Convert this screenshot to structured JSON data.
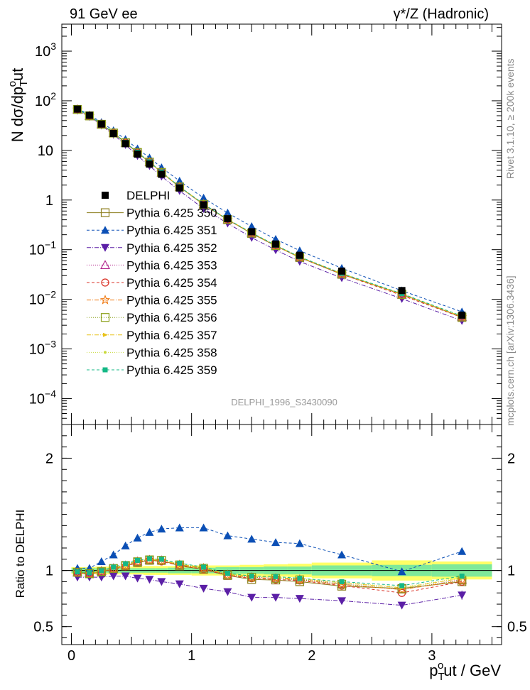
{
  "header": {
    "left": "91 GeV ee",
    "right": "γ*/Z (Hadronic)"
  },
  "side": {
    "upper": "Rivet 3.1.10, ≥ 200k events",
    "lower": "mcplots.cern.ch [arXiv:1306.3436]"
  },
  "watermark": "DELPHI_1996_S3430090",
  "colors": {
    "ref": "#000000",
    "band_inner": "#7fe99a",
    "band_outer": "#ffff66"
  },
  "chart_data": [
    {
      "type": "scatter",
      "panel": "main",
      "ylabel": "N dσ/dp",
      "ylabel_sub": "T",
      "ylabel_sup": "o",
      "ylabel_tail": "ut",
      "yscale": "log",
      "xlim": [
        -0.08,
        3.58
      ],
      "ylim": [
        3e-05,
        3500
      ],
      "yticks": [
        {
          "v": 0.0001,
          "base": "10",
          "exp": "−4"
        },
        {
          "v": 0.001,
          "base": "10",
          "exp": "−3"
        },
        {
          "v": 0.01,
          "base": "10",
          "exp": "−2"
        },
        {
          "v": 0.1,
          "base": "10",
          "exp": "−1"
        },
        {
          "v": 1,
          "base": "1",
          "exp": ""
        },
        {
          "v": 10,
          "base": "10",
          "exp": ""
        },
        {
          "v": 100,
          "base": "10",
          "exp": "2"
        },
        {
          "v": 1000,
          "base": "10",
          "exp": "3"
        }
      ],
      "x": [
        0.05,
        0.15,
        0.25,
        0.35,
        0.45,
        0.55,
        0.65,
        0.75,
        0.9,
        1.1,
        1.3,
        1.5,
        1.7,
        1.9,
        2.25,
        2.75,
        3.25
      ],
      "reference": {
        "name": "DELPHI",
        "values": [
          68,
          51,
          34,
          22,
          13.7,
          8.4,
          5.3,
          3.3,
          1.75,
          0.8,
          0.42,
          0.23,
          0.13,
          0.077,
          0.037,
          0.015,
          0.0048
        ]
      },
      "series": [
        {
          "name": "Pythia 6.425 350",
          "color": "#8c7d1c",
          "marker": "open-square",
          "dash": "",
          "values": [
            67.0,
            49.5,
            33.5,
            22.3,
            14.2,
            9.0,
            5.8,
            3.6,
            1.82,
            0.81,
            0.401,
            0.212,
            0.119,
            0.0693,
            0.0318,
            0.0128,
            0.0043
          ]
        },
        {
          "name": "Pythia 6.425 351",
          "color": "#0b4fb5",
          "marker": "triangle-up",
          "dash": "4,3",
          "values": [
            69.4,
            52.0,
            36.7,
            25.1,
            16.7,
            10.8,
            7.1,
            4.5,
            2.42,
            1.1,
            0.55,
            0.294,
            0.162,
            0.0955,
            0.0422,
            0.0149,
            0.0056
          ]
        },
        {
          "name": "Pythia 6.425 352",
          "color": "#5b1fa6",
          "marker": "triangle-down",
          "dash": "6,2,1,2",
          "values": [
            63.9,
            47.9,
            32.0,
            20.9,
            13.0,
            7.8,
            4.9,
            3.0,
            1.54,
            0.67,
            0.34,
            0.175,
            0.0988,
            0.0577,
            0.027,
            0.0103,
            0.0037
          ]
        },
        {
          "name": "Pythia 6.425 353",
          "color": "#b0208a",
          "marker": "open-triangle-up",
          "dash": "1,2",
          "values": [
            66.8,
            49.7,
            33.8,
            22.5,
            14.3,
            9.1,
            5.8,
            3.6,
            1.84,
            0.82,
            0.403,
            0.216,
            0.121,
            0.0708,
            0.0326,
            0.0124,
            0.0044
          ]
        },
        {
          "name": "Pythia 6.425 354",
          "color": "#d93025",
          "marker": "open-circle",
          "dash": "4,3",
          "values": [
            66.5,
            49.4,
            33.5,
            22.3,
            14.2,
            9.0,
            5.8,
            3.6,
            1.83,
            0.81,
            0.401,
            0.214,
            0.12,
            0.07,
            0.032,
            0.012,
            0.0043
          ]
        },
        {
          "name": "Pythia 6.425 355",
          "color": "#f07a12",
          "marker": "open-star",
          "dash": "6,2,1,2",
          "values": [
            66.6,
            49.5,
            33.6,
            22.4,
            14.3,
            9.0,
            5.8,
            3.6,
            1.84,
            0.82,
            0.403,
            0.215,
            0.121,
            0.0704,
            0.0324,
            0.0125,
            0.0044
          ]
        },
        {
          "name": "Pythia 6.425 356",
          "color": "#8aa01a",
          "marker": "open-square",
          "dash": "1,2",
          "values": [
            66.9,
            49.6,
            33.7,
            22.4,
            14.3,
            9.1,
            5.8,
            3.6,
            1.84,
            0.82,
            0.404,
            0.216,
            0.121,
            0.0706,
            0.0325,
            0.0125,
            0.0044
          ]
        },
        {
          "name": "Pythia 6.425 357",
          "color": "#e8c21a",
          "marker": "tri-right",
          "dash": "6,2,1,2",
          "values": [
            66.9,
            49.8,
            33.9,
            22.5,
            14.4,
            9.1,
            5.9,
            3.6,
            1.85,
            0.82,
            0.407,
            0.218,
            0.122,
            0.0712,
            0.033,
            0.0127,
            0.0045
          ]
        },
        {
          "name": "Pythia 6.425 358",
          "color": "#c8d93a",
          "marker": "dot",
          "dash": "1,2",
          "values": [
            67.0,
            49.9,
            33.9,
            22.6,
            14.4,
            9.2,
            5.9,
            3.6,
            1.86,
            0.83,
            0.408,
            0.218,
            0.122,
            0.0714,
            0.0331,
            0.0128,
            0.0045
          ]
        },
        {
          "name": "Pythia 6.425 359",
          "color": "#14b886",
          "marker": "filled-square",
          "dash": "4,3",
          "values": [
            67.2,
            50.0,
            34.0,
            22.7,
            14.5,
            9.2,
            5.9,
            3.7,
            1.87,
            0.83,
            0.41,
            0.219,
            0.123,
            0.0716,
            0.0333,
            0.013,
            0.0046
          ]
        }
      ]
    },
    {
      "type": "scatter",
      "panel": "ratio",
      "xlabel": "p",
      "xlabel_sub": "T",
      "xlabel_sup": "o",
      "xlabel_tail": "ut / GeV",
      "ylabel": "Ratio to DELPHI",
      "xlim": [
        -0.08,
        3.58
      ],
      "ylim": [
        0.34,
        2.3
      ],
      "xticks": [
        0,
        1,
        2,
        3
      ],
      "yticks": [
        0.5,
        1,
        2
      ],
      "band_edges": [
        0.0,
        0.1,
        0.2,
        0.3,
        0.4,
        0.5,
        0.6,
        0.7,
        0.8,
        1.0,
        1.2,
        1.4,
        1.6,
        1.8,
        2.0,
        2.5,
        3.0,
        3.5
      ],
      "band_inner": [
        0.02,
        0.02,
        0.02,
        0.02,
        0.02,
        0.02,
        0.02,
        0.02,
        0.025,
        0.025,
        0.03,
        0.03,
        0.035,
        0.035,
        0.045,
        0.05,
        0.055
      ],
      "band_outer": [
        0.03,
        0.03,
        0.035,
        0.035,
        0.035,
        0.035,
        0.04,
        0.04,
        0.04,
        0.045,
        0.045,
        0.05,
        0.055,
        0.06,
        0.07,
        0.09,
        0.08
      ],
      "ratios": [
        [
          0.985,
          0.97,
          0.985,
          1.015,
          1.04,
          1.07,
          1.09,
          1.09,
          1.04,
          1.01,
          0.955,
          0.92,
          0.915,
          0.9,
          0.86,
          0.84,
          0.9
        ],
        [
          1.02,
          1.02,
          1.08,
          1.14,
          1.22,
          1.29,
          1.34,
          1.37,
          1.38,
          1.38,
          1.31,
          1.28,
          1.25,
          1.24,
          1.14,
          0.99,
          1.17
        ],
        [
          0.94,
          0.94,
          0.94,
          0.95,
          0.95,
          0.93,
          0.92,
          0.9,
          0.88,
          0.84,
          0.81,
          0.76,
          0.76,
          0.75,
          0.73,
          0.69,
          0.78
        ],
        [
          0.982,
          0.975,
          0.995,
          1.02,
          1.045,
          1.08,
          1.095,
          1.09,
          1.05,
          1.02,
          0.96,
          0.94,
          0.93,
          0.92,
          0.88,
          0.83,
          0.92
        ],
        [
          0.978,
          0.968,
          0.985,
          1.012,
          1.035,
          1.07,
          1.09,
          1.08,
          1.045,
          1.01,
          0.955,
          0.93,
          0.92,
          0.91,
          0.865,
          0.8,
          0.9
        ],
        [
          0.98,
          0.97,
          0.988,
          1.015,
          1.042,
          1.075,
          1.09,
          1.085,
          1.05,
          1.02,
          0.96,
          0.935,
          0.93,
          0.915,
          0.875,
          0.83,
          0.91
        ],
        [
          0.984,
          0.972,
          0.99,
          1.018,
          1.045,
          1.078,
          1.095,
          1.09,
          1.05,
          1.02,
          0.962,
          0.94,
          0.93,
          0.917,
          0.878,
          0.835,
          0.915
        ],
        [
          0.985,
          0.976,
          0.995,
          1.022,
          1.05,
          1.085,
          1.1,
          1.09,
          1.055,
          1.025,
          0.968,
          0.948,
          0.938,
          0.925,
          0.89,
          0.845,
          0.93
        ],
        [
          0.986,
          0.978,
          0.996,
          1.025,
          1.052,
          1.088,
          1.1,
          1.092,
          1.06,
          1.03,
          0.97,
          0.948,
          0.94,
          0.927,
          0.893,
          0.85,
          0.935
        ],
        [
          0.988,
          0.98,
          0.998,
          1.03,
          1.06,
          1.09,
          1.105,
          1.1,
          1.065,
          1.03,
          0.975,
          0.95,
          0.945,
          0.93,
          0.9,
          0.865,
          0.95
        ]
      ]
    }
  ]
}
